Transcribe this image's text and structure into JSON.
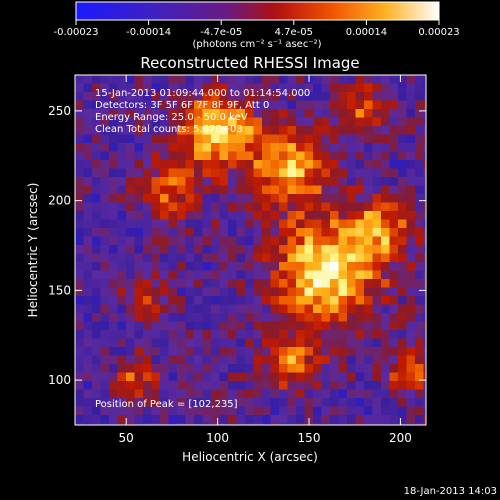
{
  "colorbar": {
    "tick_labels": [
      "-0.00023",
      "-0.00014",
      "-4.7e-05",
      "4.7e-05",
      "0.00014",
      "0.00023"
    ],
    "unit_label": "(photons cm⁻² s⁻¹ asec⁻²)",
    "range": [
      -0.00023,
      0.00023
    ]
  },
  "chart_data": {
    "type": "heatmap",
    "title": "Reconstructed RHESSI Image",
    "xlabel": "Heliocentric X (arcsec)",
    "ylabel": "Heliocentric Y (arcsec)",
    "xlim": [
      22,
      214
    ],
    "ylim": [
      75,
      270
    ],
    "x_ticks": [
      50,
      100,
      150,
      200
    ],
    "y_ticks": [
      100,
      150,
      200,
      250
    ],
    "info_lines": [
      "15-Jan-2013 01:09:44.000 to 01:14:54.000",
      "Detectors: 3F 5F 6F 7F 8F 9F, Att 0",
      "Energy Range: 25.0 - 50.0 keV",
      "Clean     Total counts: 5.67E+03"
    ],
    "peak_annotation": "Position of Peak = [102,235]",
    "peak": [
      102,
      235
    ],
    "colormap": [
      "#1a1aff",
      "#3a1f9e",
      "#5a2aa0",
      "#8a1a2a",
      "#c11a00",
      "#f26400",
      "#ffb31a",
      "#fff27a",
      "#ffffff"
    ],
    "bright_regions": [
      {
        "x": 160,
        "y": 160,
        "sigma": 20,
        "amp": 1.0
      },
      {
        "x": 100,
        "y": 238,
        "sigma": 14,
        "amp": 0.95
      },
      {
        "x": 140,
        "y": 220,
        "sigma": 16,
        "amp": 0.75
      },
      {
        "x": 72,
        "y": 205,
        "sigma": 12,
        "amp": 0.55
      },
      {
        "x": 190,
        "y": 185,
        "sigma": 12,
        "amp": 0.6
      },
      {
        "x": 60,
        "y": 145,
        "sigma": 9,
        "amp": 0.45
      },
      {
        "x": 55,
        "y": 100,
        "sigma": 9,
        "amp": 0.5
      },
      {
        "x": 140,
        "y": 110,
        "sigma": 12,
        "amp": 0.55
      },
      {
        "x": 205,
        "y": 105,
        "sigma": 10,
        "amp": 0.45
      },
      {
        "x": 180,
        "y": 250,
        "sigma": 10,
        "amp": 0.5
      }
    ]
  },
  "timestamp": "18-Jan-2013 14:03"
}
